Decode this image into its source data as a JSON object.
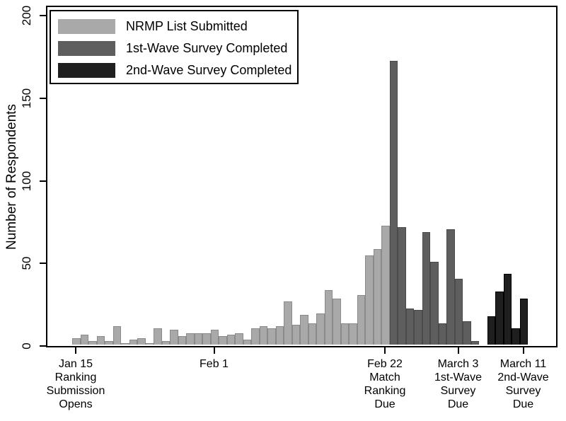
{
  "chart_data": {
    "type": "bar",
    "title": "",
    "ylabel": "Number of Respondents",
    "xlabel": "",
    "ylim": [
      0,
      200
    ],
    "yticks": [
      0,
      50,
      100,
      150,
      200
    ],
    "grid": false,
    "legend_position": "top-left",
    "bar_unit": "day",
    "series": [
      {
        "name": "NRMP List Submitted",
        "color": "#a9a9a9",
        "border_color": "#8a8a8a",
        "start_day_index": 0,
        "start_date": "Jan 15",
        "end_date": "Feb 22",
        "values": [
          4,
          6,
          2,
          5,
          2,
          11,
          1,
          3,
          4,
          1,
          10,
          2,
          9,
          5,
          7,
          7,
          7,
          9,
          5,
          6,
          7,
          3,
          10,
          11,
          10,
          11,
          26,
          12,
          18,
          13,
          19,
          33,
          28,
          13,
          13,
          30,
          54,
          58,
          72
        ]
      },
      {
        "name": "1st-Wave Survey Completed",
        "color": "#5e5e5e",
        "border_color": "#4a4a4a",
        "start_day_index": 39,
        "start_date": "Feb 23",
        "end_date": "Mar 5",
        "values": [
          172,
          71,
          22,
          21,
          68,
          50,
          13,
          70,
          40,
          14,
          2
        ]
      },
      {
        "name": "2nd-Wave Survey Completed",
        "color": "#1f1f1f",
        "border_color": "#000000",
        "start_day_index": 51,
        "start_date": "Mar 7",
        "end_date": "Mar 11",
        "values": [
          17,
          32,
          43,
          10,
          28
        ]
      }
    ],
    "x_ticks": [
      {
        "day_index": 0,
        "lines": [
          "Jan 15",
          "Ranking",
          "Submission",
          "Opens"
        ]
      },
      {
        "day_index": 17,
        "lines": [
          "Feb 1"
        ]
      },
      {
        "day_index": 38,
        "lines": [
          "Feb 22",
          "Match",
          "Ranking",
          "Due"
        ]
      },
      {
        "day_index": 47,
        "lines": [
          "March 3",
          "1st-Wave",
          "Survey",
          "Due"
        ]
      },
      {
        "day_index": 55,
        "lines": [
          "March 11",
          "2nd-Wave",
          "Survey",
          "Due"
        ]
      }
    ],
    "legend_entries": [
      {
        "label": "NRMP List Submitted",
        "color": "#a9a9a9"
      },
      {
        "label": "1st-Wave Survey Completed",
        "color": "#5e5e5e"
      },
      {
        "label": "2nd-Wave Survey Completed",
        "color": "#1f1f1f"
      }
    ],
    "axis_color": "#000000",
    "background_color": "#ffffff"
  }
}
